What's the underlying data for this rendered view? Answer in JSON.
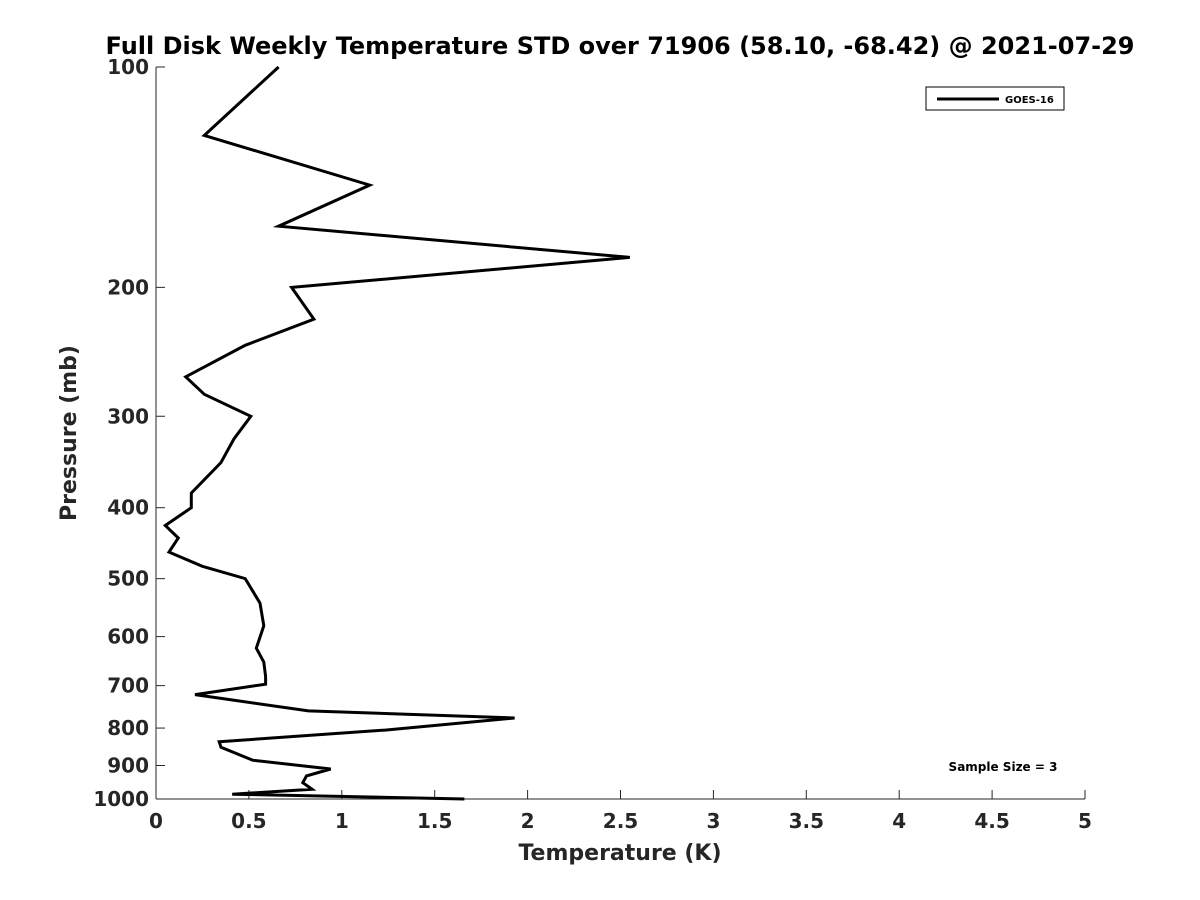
{
  "chart_data": {
    "type": "line",
    "title": "Full Disk Weekly Temperature STD over 71906 (58.10, -68.42) @ 2021-07-29",
    "xlabel": "Temperature (K)",
    "ylabel": "Pressure (mb)",
    "xlim": [
      0,
      5
    ],
    "ylim": [
      100,
      1000
    ],
    "y_scale": "log",
    "y_reversed": true,
    "grid": false,
    "legend_position": "top-right",
    "x_ticks": [
      "0",
      "0.5",
      "1",
      "1.5",
      "2",
      "2.5",
      "3",
      "3.5",
      "4",
      "4.5",
      "5"
    ],
    "y_ticks": [
      "100",
      "200",
      "300",
      "400",
      "500",
      "600",
      "700",
      "800",
      "900",
      "1000"
    ],
    "series": [
      {
        "name": "GOES-16",
        "color": "#000000",
        "x": [
          0.66,
          0.26,
          1.15,
          0.66,
          2.55,
          0.73,
          0.85,
          0.48,
          0.16,
          0.26,
          0.51,
          0.42,
          0.35,
          0.19,
          0.19,
          0.05,
          0.12,
          0.07,
          0.25,
          0.48,
          0.56,
          0.58,
          0.54,
          0.58,
          0.59,
          0.59,
          0.21,
          0.82,
          1.93,
          1.24,
          0.34,
          0.35,
          0.52,
          0.94,
          0.81,
          0.79,
          0.84,
          0.41,
          1.66
        ],
        "y": [
          100,
          124,
          145,
          165,
          182,
          200,
          221,
          240,
          265,
          280,
          300,
          322,
          347,
          382,
          400,
          423,
          440,
          460,
          481,
          500,
          540,
          580,
          622,
          650,
          680,
          697,
          720,
          758,
          775,
          805,
          835,
          850,
          885,
          910,
          930,
          950,
          970,
          985,
          1000
        ]
      }
    ],
    "annotations": [
      {
        "text": "Sample Size = 3"
      }
    ]
  }
}
